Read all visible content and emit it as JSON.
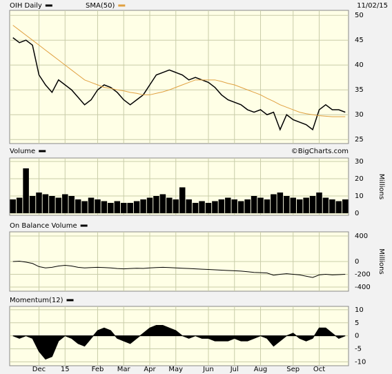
{
  "header": {
    "date": "11/02/15",
    "watermark": "©BigCharts.com"
  },
  "chart_data": [
    {
      "type": "line",
      "ylim": [
        24.2,
        51
      ],
      "yticks": [
        25,
        30,
        35,
        40,
        45,
        50
      ],
      "grid": true,
      "series": [
        {
          "name": "OIH Daily",
          "color": "#000000",
          "values": [
            45.5,
            44.5,
            45,
            44,
            38,
            36,
            34.5,
            37,
            36,
            35,
            33.5,
            32,
            33,
            35,
            36,
            35.5,
            34.5,
            33,
            32,
            33,
            34,
            36,
            38,
            38.5,
            39,
            38.5,
            38,
            37,
            37.5,
            37,
            36.5,
            35.5,
            34,
            33,
            32.5,
            32,
            31,
            30.5,
            31,
            30,
            30.5,
            27,
            30,
            29,
            28.5,
            28,
            27,
            31,
            32,
            31,
            31,
            30.5
          ]
        },
        {
          "name": "SMA(50)",
          "color": "#e0a040",
          "values": [
            48,
            47,
            46,
            45,
            44,
            43,
            42,
            41,
            40,
            39,
            38,
            37,
            36.5,
            36,
            35.5,
            35.3,
            35,
            34.8,
            34.5,
            34.3,
            34,
            34,
            34.3,
            34.6,
            35,
            35.5,
            36,
            36.5,
            37,
            37,
            37,
            37,
            36.7,
            36.3,
            36,
            35.5,
            35,
            34.5,
            34,
            33.3,
            32.7,
            32,
            31.5,
            31,
            30.5,
            30.2,
            30,
            29.8,
            29.7,
            29.6,
            29.6,
            29.6
          ]
        }
      ]
    },
    {
      "type": "bar",
      "ylabel": "Millions",
      "ylim": [
        -1.2,
        32
      ],
      "yticks": [
        0,
        10,
        20,
        30
      ],
      "grid": true,
      "series": [
        {
          "name": "Volume",
          "color": "#000000",
          "values": [
            8,
            9,
            26,
            10,
            12,
            11,
            10,
            9,
            11,
            10,
            8,
            7,
            9,
            8,
            7,
            6,
            7,
            6,
            6,
            7,
            8,
            9,
            10,
            11,
            9,
            8,
            15,
            8,
            6,
            7,
            6,
            7,
            8,
            9,
            8,
            7,
            8,
            10,
            9,
            8,
            11,
            12,
            10,
            9,
            8,
            9,
            10,
            12,
            9,
            8,
            7,
            8
          ]
        }
      ]
    },
    {
      "type": "line",
      "ylabel": "Millions",
      "ylim": [
        -465,
        465
      ],
      "yticks": [
        -400,
        -200,
        0,
        400
      ],
      "grid": true,
      "series": [
        {
          "name": "On Balance Volume",
          "color": "#000000",
          "values": [
            0,
            5,
            -10,
            -30,
            -80,
            -100,
            -90,
            -70,
            -60,
            -70,
            -90,
            -100,
            -95,
            -90,
            -95,
            -100,
            -110,
            -115,
            -110,
            -105,
            -108,
            -100,
            -95,
            -90,
            -95,
            -100,
            -105,
            -110,
            -115,
            -120,
            -125,
            -130,
            -135,
            -140,
            -145,
            -150,
            -160,
            -170,
            -175,
            -180,
            -215,
            -200,
            -190,
            -200,
            -210,
            -230,
            -250,
            -210,
            -200,
            -210,
            -205,
            -200
          ]
        }
      ]
    },
    {
      "type": "area",
      "categories": [
        null,
        null,
        null,
        null,
        "Dec",
        null,
        null,
        null,
        "15",
        null,
        null,
        null,
        null,
        "Feb",
        null,
        null,
        null,
        "Mar",
        null,
        null,
        null,
        "Apr",
        null,
        null,
        null,
        "May",
        null,
        null,
        null,
        null,
        "Jun",
        null,
        null,
        null,
        "Jul",
        null,
        null,
        null,
        "Aug",
        null,
        null,
        null,
        null,
        "Sep",
        null,
        null,
        null,
        "Oct",
        null,
        null,
        null,
        null
      ],
      "ylim": [
        -11.5,
        11.3
      ],
      "yticks": [
        -10,
        -5,
        0,
        5,
        10
      ],
      "grid": true,
      "series": [
        {
          "name": "Momentum(12)",
          "color": "#000000",
          "values": [
            0,
            -1,
            0,
            -1,
            -6,
            -9,
            -8,
            -2,
            0,
            -1,
            -3,
            -4,
            -1,
            2,
            3,
            2,
            -1,
            -2,
            -3,
            -1,
            1,
            3,
            4,
            4,
            3,
            2,
            0,
            -1,
            0,
            -1,
            -1,
            -2,
            -2,
            -2,
            -1,
            -2,
            -2,
            -1,
            0,
            -1,
            -4,
            -2,
            0,
            1,
            -1,
            -2,
            -1,
            3,
            3,
            1,
            -1,
            0
          ]
        }
      ]
    }
  ]
}
